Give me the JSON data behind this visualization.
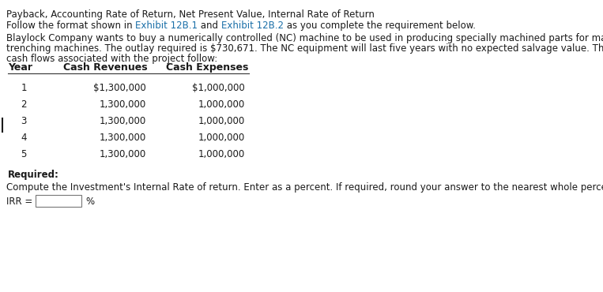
{
  "title": "Payback, Accounting Rate of Return, Net Present Value, Internal Rate of Return",
  "follow_plain1": "Follow the format shown in ",
  "link1_text": "Exhibit 12B.1",
  "follow_plain2": " and ",
  "link2_text": "Exhibit 12B.2",
  "follow_plain3": " as you complete the requirement below.",
  "para1_line1": "Blaylock Company wants to buy a numerically controlled (NC) machine to be used in producing specially machined parts for manufacturers of",
  "para1_line2": "trenching machines. The outlay required is $730,671. The NC equipment will last five years with no expected salvage value. The expected after-tax",
  "para1_line3": "cash flows associated with the project follow:",
  "table_headers": [
    "Year",
    "Cash Revenues",
    "Cash Expenses"
  ],
  "table_rows": [
    [
      "1",
      "$1,300,000",
      "$1,000,000"
    ],
    [
      "2",
      "1,300,000",
      "1,000,000"
    ],
    [
      "3",
      "1,300,000",
      "1,000,000"
    ],
    [
      "4",
      "1,300,000",
      "1,000,000"
    ],
    [
      "5",
      "1,300,000",
      "1,000,000"
    ]
  ],
  "required_label": "Required:",
  "compute_text": "Compute the Investment's Internal Rate of return. Enter as a percent. If required, round your answer to the nearest whole percent.",
  "irr_label": "IRR = ",
  "percent_label": "%",
  "link_color": "#1a6fa8",
  "text_color": "#1a1a1a",
  "bg_color": "#ffffff",
  "font_size": 8.5
}
